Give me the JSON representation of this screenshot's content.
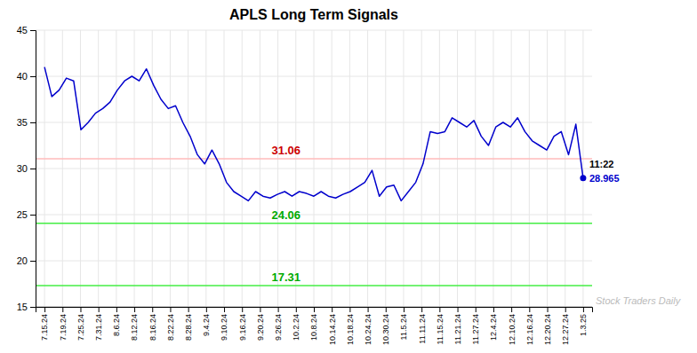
{
  "chart_data": {
    "type": "line",
    "title": "APLS Long Term Signals",
    "color": "#0000cc",
    "grid": true,
    "xlim": [
      -0.5,
      30.5
    ],
    "xticks": [
      {
        "value": 0,
        "label": "7.15.24"
      },
      {
        "value": 1,
        "label": "7.19.24"
      },
      {
        "value": 2,
        "label": "7.25.24"
      },
      {
        "value": 3,
        "label": "7.31.24"
      },
      {
        "value": 4,
        "label": "8.6.24"
      },
      {
        "value": 5,
        "label": "8.12.24"
      },
      {
        "value": 6,
        "label": "8.16.24"
      },
      {
        "value": 7,
        "label": "8.22.24"
      },
      {
        "value": 8,
        "label": "8.28.24"
      },
      {
        "value": 9,
        "label": "9.4.24"
      },
      {
        "value": 10,
        "label": "9.10.24"
      },
      {
        "value": 11,
        "label": "9.16.24"
      },
      {
        "value": 12,
        "label": "9.20.24"
      },
      {
        "value": 13,
        "label": "9.26.24"
      },
      {
        "value": 14,
        "label": "10.2.24"
      },
      {
        "value": 15,
        "label": "10.8.24"
      },
      {
        "value": 16,
        "label": "10.14.24"
      },
      {
        "value": 17,
        "label": "10.18.24"
      },
      {
        "value": 18,
        "label": "10.24.24"
      },
      {
        "value": 19,
        "label": "10.30.24"
      },
      {
        "value": 20,
        "label": "11.5.24"
      },
      {
        "value": 21,
        "label": "11.11.24"
      },
      {
        "value": 22,
        "label": "11.15.24"
      },
      {
        "value": 23,
        "label": "11.21.24"
      },
      {
        "value": 24,
        "label": "11.27.24"
      },
      {
        "value": 25,
        "label": "12.4.24"
      },
      {
        "value": 26,
        "label": "12.10.24"
      },
      {
        "value": 27,
        "label": "12.16.24"
      },
      {
        "value": 28,
        "label": "12.20.24"
      },
      {
        "value": 29,
        "label": "12.27.24"
      },
      {
        "value": 30,
        "label": "1.3.25"
      }
    ],
    "ylim": [
      15,
      45
    ],
    "yticks": [
      15,
      20,
      25,
      30,
      35,
      40,
      45
    ],
    "x": [
      0,
      0.405405,
      0.810811,
      1.216216,
      1.621622,
      2.027027,
      2.432432,
      2.837838,
      3.243243,
      3.648649,
      4.054054,
      4.459459,
      4.864865,
      5.27027,
      5.675676,
      6.081081,
      6.486486,
      6.891892,
      7.297297,
      7.702703,
      8.108108,
      8.513514,
      8.918919,
      9.324324,
      9.72973,
      10.135135,
      10.540541,
      10.945946,
      11.351351,
      11.756757,
      12.162162,
      12.567568,
      12.972973,
      13.378378,
      13.783784,
      14.189189,
      14.594595,
      15,
      15.405405,
      15.810811,
      16.216216,
      16.621622,
      17.027027,
      17.432432,
      17.837838,
      18.243243,
      18.648649,
      19.054054,
      19.459459,
      19.864865,
      20.27027,
      20.675676,
      21.081081,
      21.486486,
      21.891892,
      22.297297,
      22.702703,
      23.108108,
      23.513514,
      23.918919,
      24.324324,
      24.72973,
      25.135135,
      25.540541,
      25.945946,
      26.351351,
      26.756757,
      27.162162,
      27.567568,
      27.972973,
      28.378378,
      28.783784,
      29.189189,
      29.594595,
      30
    ],
    "values": [
      41.0,
      37.8,
      38.5,
      39.8,
      39.5,
      34.2,
      35.0,
      36.0,
      36.5,
      37.2,
      38.5,
      39.5,
      40.0,
      39.5,
      40.8,
      39.0,
      37.5,
      36.5,
      36.8,
      35.0,
      33.5,
      31.5,
      30.5,
      32.0,
      30.5,
      28.5,
      27.5,
      27.0,
      26.5,
      27.5,
      27.0,
      26.8,
      27.2,
      27.5,
      27.0,
      27.5,
      27.3,
      27.0,
      27.5,
      27.0,
      26.8,
      27.2,
      27.5,
      28.0,
      28.5,
      29.8,
      27.0,
      28.0,
      28.2,
      26.5,
      27.5,
      28.5,
      30.5,
      34.0,
      33.8,
      34.0,
      35.5,
      35.0,
      34.5,
      35.2,
      33.5,
      32.5,
      34.5,
      35.0,
      34.5,
      35.5,
      34.0,
      33.0,
      32.5,
      32.0,
      33.5,
      34.0,
      31.5,
      34.8,
      28.965
    ],
    "hlines": [
      {
        "y": 31.06,
        "color": "#ffbbbb",
        "label": "31.06",
        "label_color": "#cc0000"
      },
      {
        "y": 24.06,
        "color": "#44ee44",
        "label": "24.06",
        "label_color": "#00aa00"
      },
      {
        "y": 17.31,
        "color": "#44ee44",
        "label": "17.31",
        "label_color": "#00aa00"
      },
      {
        "y": 15.0,
        "color": "#aaaaaa"
      }
    ],
    "watermark": {
      "text": "Stock Traders Daily",
      "color": "#bbbbbb"
    },
    "last_point": {
      "color": "#0000cc",
      "time_label": "11:22",
      "time_color": "#000000",
      "value_label": "28.965",
      "value_label_color": "#0000cc"
    }
  }
}
